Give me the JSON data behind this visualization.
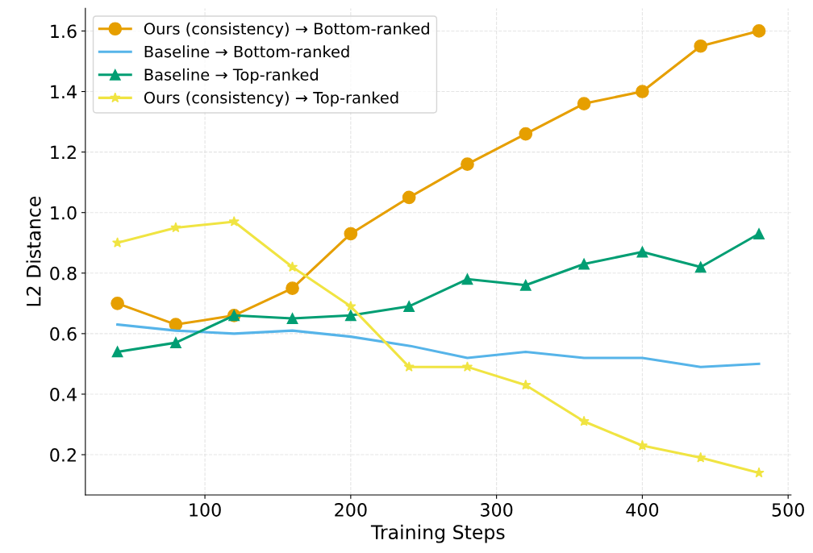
{
  "chart_data": {
    "type": "line",
    "xlabel": "Training Steps",
    "ylabel": "L2 Distance",
    "x": [
      40,
      80,
      120,
      160,
      200,
      240,
      280,
      320,
      360,
      400,
      440,
      480
    ],
    "series": [
      {
        "name": "Ours (consistency) → Bottom-ranked",
        "color": "#e69f00",
        "marker": "circle",
        "values": [
          0.7,
          0.63,
          0.66,
          0.75,
          0.93,
          1.05,
          1.16,
          1.26,
          1.36,
          1.4,
          1.55,
          1.6
        ]
      },
      {
        "name": "Baseline → Bottom-ranked",
        "color": "#56b4e9",
        "marker": "none",
        "values": [
          0.63,
          0.61,
          0.6,
          0.61,
          0.59,
          0.56,
          0.52,
          0.54,
          0.52,
          0.52,
          0.49,
          0.5
        ]
      },
      {
        "name": "Baseline → Top-ranked",
        "color": "#009e73",
        "marker": "triangle",
        "values": [
          0.54,
          0.57,
          0.66,
          0.65,
          0.66,
          0.69,
          0.78,
          0.76,
          0.83,
          0.87,
          0.82,
          0.93
        ]
      },
      {
        "name": "Ours (consistency) → Top-ranked",
        "color": "#f0e442",
        "marker": "star",
        "values": [
          0.9,
          0.95,
          0.97,
          0.82,
          0.69,
          0.49,
          0.49,
          0.43,
          0.31,
          0.23,
          0.19,
          0.14
        ]
      }
    ],
    "xlim": [
      18,
      502
    ],
    "ylim": [
      0.067,
      1.675
    ],
    "xticks": [
      100,
      200,
      300,
      400,
      500
    ],
    "yticks": [
      0.2,
      0.4,
      0.6,
      0.8,
      {
        "value": 1.0,
        "label": "1.0"
      },
      1.2,
      1.4,
      1.6
    ],
    "grid": true,
    "legend": "top left",
    "line_style": "solid"
  }
}
